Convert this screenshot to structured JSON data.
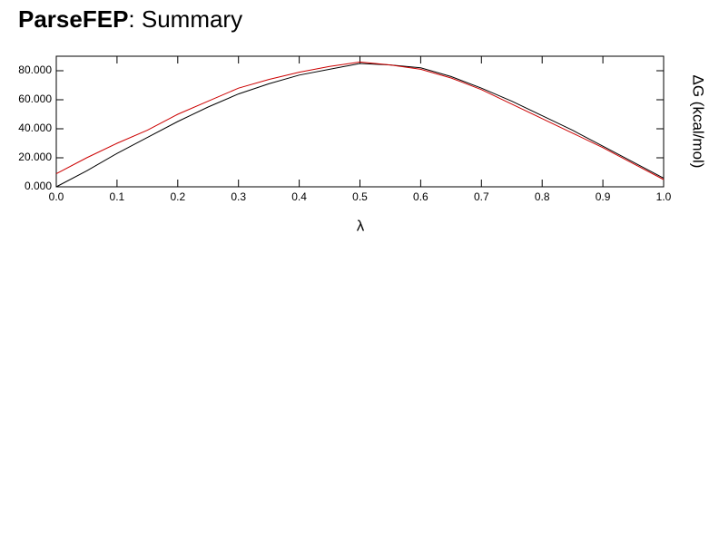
{
  "chart_data": {
    "type": "line",
    "title_bold": "ParseFEP",
    "title": ": Summary",
    "xlabel": "λ",
    "ylabel": "ΔG (kcal/mol)",
    "x": [
      0,
      0.05,
      0.1,
      0.15,
      0.2,
      0.25,
      0.3,
      0.35,
      0.4,
      0.45,
      0.5,
      0.55,
      0.6,
      0.65,
      0.7,
      0.75,
      0.8,
      0.85,
      0.9,
      0.95,
      1.0
    ],
    "series": [
      {
        "color": "#000000",
        "values": [
          0,
          11,
          23,
          34,
          45,
          55,
          64,
          71,
          77,
          81,
          85,
          84,
          82,
          76,
          68,
          59,
          49,
          39,
          28,
          17,
          6
        ]
      },
      {
        "color": "#cc0000",
        "values": [
          9,
          20,
          30,
          39,
          50,
          59,
          68,
          74,
          79,
          83,
          86,
          84,
          81,
          75,
          67,
          57,
          47,
          37,
          27,
          16,
          5
        ]
      }
    ],
    "xlim": [
      0,
      1
    ],
    "xticks": [
      {
        "value": 0,
        "label": "0.0"
      },
      0.1,
      0.2,
      0.3,
      0.4,
      0.5,
      0.6,
      0.7,
      0.8,
      0.9,
      {
        "value": 1,
        "label": "1.0"
      }
    ],
    "ylim": [
      0,
      90
    ],
    "yticks": [
      {
        "value": 0,
        "label": "0.000"
      },
      {
        "value": 20,
        "label": "20.000"
      },
      {
        "value": 40,
        "label": "40.000"
      },
      {
        "value": 60,
        "label": "60.000"
      },
      {
        "value": 80,
        "label": "80.000"
      }
    ]
  }
}
